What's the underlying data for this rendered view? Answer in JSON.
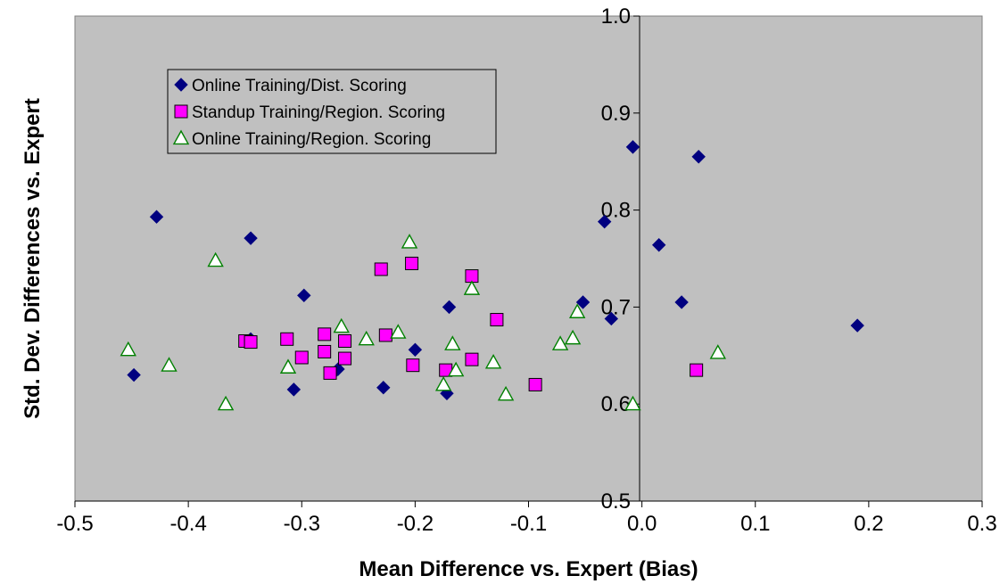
{
  "chart_data": {
    "type": "scatter",
    "title": "",
    "xlabel": "Mean Difference vs. Expert (Bias)",
    "ylabel": "Std. Dev. Differences vs. Expert",
    "xlim": [
      -0.5,
      0.3
    ],
    "ylim": [
      0.5,
      1.0
    ],
    "x_ticks": [
      "-0.5",
      "-0.4",
      "-0.3",
      "-0.2",
      "-0.1",
      "0.0",
      "0.1",
      "0.2",
      "0.3"
    ],
    "y_ticks": [
      "0.5",
      "0.6",
      "0.7",
      "0.8",
      "0.9",
      "1.0"
    ],
    "x_tick_values": [
      -0.5,
      -0.4,
      -0.3,
      -0.2,
      -0.1,
      0.0,
      0.1,
      0.2,
      0.3
    ],
    "y_tick_values": [
      0.5,
      0.6,
      0.7,
      0.8,
      0.9,
      1.0
    ],
    "grid": false,
    "legend_position": "top-left",
    "background_color": "#C0C0C0",
    "series": [
      {
        "name": "Online Training/Dist. Scoring",
        "marker": "diamond",
        "color": "#000080",
        "points": [
          [
            -0.448,
            0.63
          ],
          [
            -0.428,
            0.793
          ],
          [
            -0.345,
            0.771
          ],
          [
            -0.345,
            0.667
          ],
          [
            -0.307,
            0.615
          ],
          [
            -0.298,
            0.712
          ],
          [
            -0.268,
            0.636
          ],
          [
            -0.272,
            0.632
          ],
          [
            -0.228,
            0.617
          ],
          [
            -0.2,
            0.656
          ],
          [
            -0.172,
            0.611
          ],
          [
            -0.17,
            0.7
          ],
          [
            -0.052,
            0.705
          ],
          [
            -0.033,
            0.788
          ],
          [
            -0.027,
            0.688
          ],
          [
            -0.008,
            0.865
          ],
          [
            0.015,
            0.764
          ],
          [
            0.035,
            0.705
          ],
          [
            0.05,
            0.855
          ],
          [
            0.19,
            0.681
          ]
        ]
      },
      {
        "name": "Standup Training/Region. Scoring",
        "marker": "square",
        "color": "#FF00FF",
        "points": [
          [
            -0.35,
            0.665
          ],
          [
            -0.345,
            0.664
          ],
          [
            -0.313,
            0.667
          ],
          [
            -0.3,
            0.648
          ],
          [
            -0.28,
            0.672
          ],
          [
            -0.28,
            0.654
          ],
          [
            -0.275,
            0.632
          ],
          [
            -0.262,
            0.665
          ],
          [
            -0.262,
            0.647
          ],
          [
            -0.23,
            0.739
          ],
          [
            -0.226,
            0.671
          ],
          [
            -0.203,
            0.745
          ],
          [
            -0.202,
            0.64
          ],
          [
            -0.173,
            0.635
          ],
          [
            -0.15,
            0.732
          ],
          [
            -0.15,
            0.646
          ],
          [
            -0.128,
            0.687
          ],
          [
            -0.094,
            0.62
          ],
          [
            0.048,
            0.635
          ]
        ]
      },
      {
        "name": "Online Training/Region. Scoring",
        "marker": "triangle",
        "color": "#008000",
        "points": [
          [
            -0.453,
            0.656
          ],
          [
            -0.417,
            0.64
          ],
          [
            -0.376,
            0.748
          ],
          [
            -0.367,
            0.6
          ],
          [
            -0.312,
            0.638
          ],
          [
            -0.265,
            0.68
          ],
          [
            -0.243,
            0.667
          ],
          [
            -0.215,
            0.674
          ],
          [
            -0.205,
            0.767
          ],
          [
            -0.175,
            0.62
          ],
          [
            -0.167,
            0.662
          ],
          [
            -0.164,
            0.635
          ],
          [
            -0.15,
            0.719
          ],
          [
            -0.131,
            0.643
          ],
          [
            -0.12,
            0.61
          ],
          [
            -0.072,
            0.662
          ],
          [
            -0.061,
            0.668
          ],
          [
            -0.057,
            0.695
          ],
          [
            -0.008,
            0.6
          ],
          [
            0.067,
            0.653
          ]
        ]
      }
    ]
  }
}
